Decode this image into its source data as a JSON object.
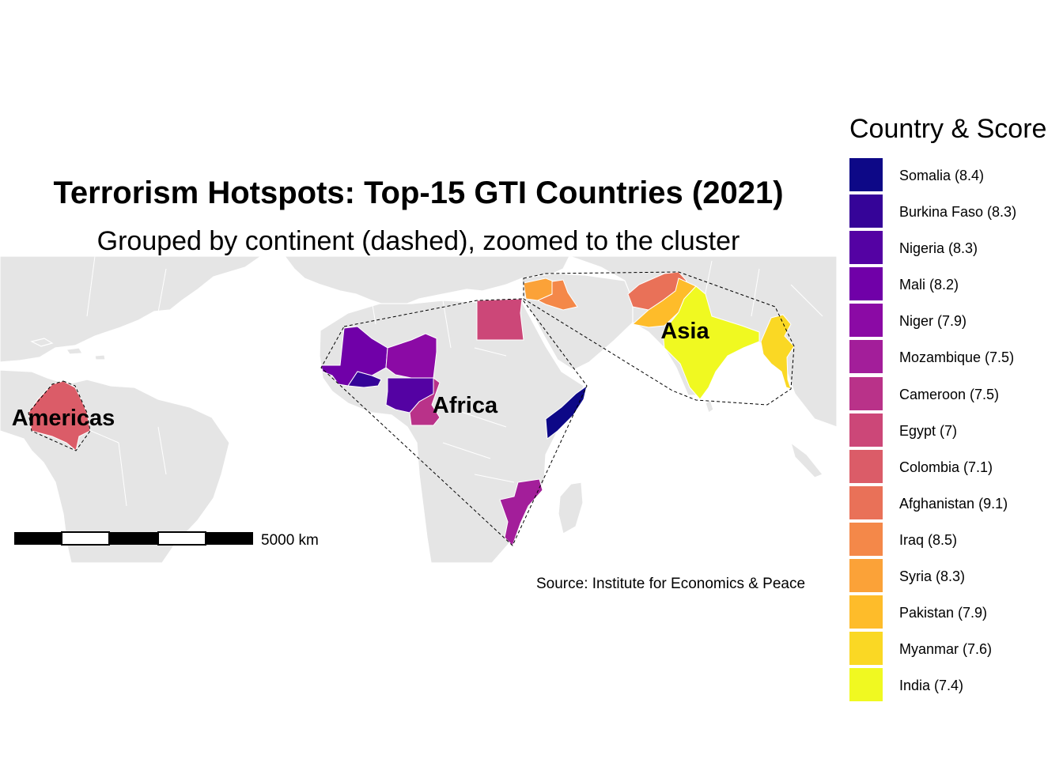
{
  "title": "Terrorism Hotspots: Top-15 GTI Countries (2021)",
  "subtitle": "Grouped by continent (dashed), zoomed to the cluster",
  "source": "Source: Institute for Economics & Peace",
  "scale_bar": {
    "label": "5000 km",
    "distance_km": 5000
  },
  "colors": {
    "land": "#e5e5e5",
    "border": "#ffffff",
    "hull": "#000000"
  },
  "region_labels": [
    {
      "id": "americas",
      "label": "Americas"
    },
    {
      "id": "africa",
      "label": "Africa"
    },
    {
      "id": "asia",
      "label": "Asia"
    }
  ],
  "legend": {
    "title": "Country & Score",
    "items": [
      {
        "country": "Somalia",
        "score": 8.4,
        "label": "Somalia (8.4)",
        "color": "#0d0887",
        "continent": "Africa"
      },
      {
        "country": "Burkina Faso",
        "score": 8.3,
        "label": "Burkina Faso (8.3)",
        "color": "#350498",
        "continent": "Africa"
      },
      {
        "country": "Nigeria",
        "score": 8.3,
        "label": "Nigeria (8.3)",
        "color": "#5402a3",
        "continent": "Africa"
      },
      {
        "country": "Mali",
        "score": 8.2,
        "label": "Mali (8.2)",
        "color": "#7000a8",
        "continent": "Africa"
      },
      {
        "country": "Niger",
        "score": 7.9,
        "label": "Niger (7.9)",
        "color": "#8b0aa5",
        "continent": "Africa"
      },
      {
        "country": "Mozambique",
        "score": 7.5,
        "label": "Mozambique (7.5)",
        "color": "#a31e9a",
        "continent": "Africa"
      },
      {
        "country": "Cameroon",
        "score": 7.5,
        "label": "Cameroon (7.5)",
        "color": "#b93289",
        "continent": "Africa"
      },
      {
        "country": "Egypt",
        "score": 7.0,
        "label": "Egypt (7)",
        "color": "#cc4778",
        "continent": "Africa"
      },
      {
        "country": "Colombia",
        "score": 7.1,
        "label": "Colombia (7.1)",
        "color": "#db5c68",
        "continent": "Americas"
      },
      {
        "country": "Afghanistan",
        "score": 9.1,
        "label": "Afghanistan (9.1)",
        "color": "#e97158",
        "continent": "Asia"
      },
      {
        "country": "Iraq",
        "score": 8.5,
        "label": "Iraq (8.5)",
        "color": "#f48849",
        "continent": "Asia"
      },
      {
        "country": "Syria",
        "score": 8.3,
        "label": "Syria (8.3)",
        "color": "#fba238",
        "continent": "Asia"
      },
      {
        "country": "Pakistan",
        "score": 7.9,
        "label": "Pakistan (7.9)",
        "color": "#febc2a",
        "continent": "Asia"
      },
      {
        "country": "Myanmar",
        "score": 7.6,
        "label": "Myanmar (7.6)",
        "color": "#fad824",
        "continent": "Asia"
      },
      {
        "country": "India",
        "score": 7.4,
        "label": "India (7.4)",
        "color": "#f0f921",
        "continent": "Asia"
      }
    ]
  }
}
